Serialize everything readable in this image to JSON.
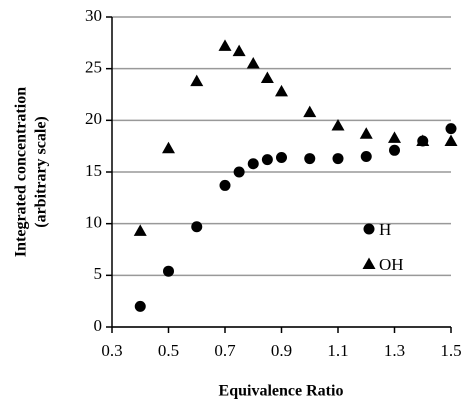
{
  "chart_data": {
    "type": "scatter",
    "xlabel": "Equivalence Ratio",
    "ylabel": [
      "Integrated concentration",
      "(arbitrary scale)"
    ],
    "x": [
      0.4,
      0.5,
      0.6,
      0.7,
      0.75,
      0.8,
      0.85,
      0.9,
      1.0,
      1.1,
      1.2,
      1.3,
      1.4,
      1.5
    ],
    "series": [
      {
        "name": "H",
        "color": "#000000",
        "marker": "circle",
        "values": [
          2.0,
          5.4,
          9.7,
          13.7,
          15.0,
          15.8,
          16.2,
          16.4,
          16.3,
          16.3,
          16.5,
          17.1,
          18.0,
          19.2
        ]
      },
      {
        "name": "OH",
        "color": "#000000",
        "marker": "triangle",
        "values": [
          9.3,
          17.3,
          23.8,
          27.2,
          26.7,
          25.5,
          24.1,
          22.8,
          20.8,
          19.5,
          18.7,
          18.3,
          18.0,
          18.0
        ]
      }
    ],
    "xlim": [
      0.3,
      1.5
    ],
    "xticks": [
      0.3,
      0.5,
      0.7,
      0.9,
      1.1,
      1.3,
      1.5
    ],
    "ylim": [
      0,
      30
    ],
    "yticks": [
      0,
      5,
      10,
      15,
      20,
      25,
      30
    ],
    "grid": true,
    "legend": "center-right"
  }
}
